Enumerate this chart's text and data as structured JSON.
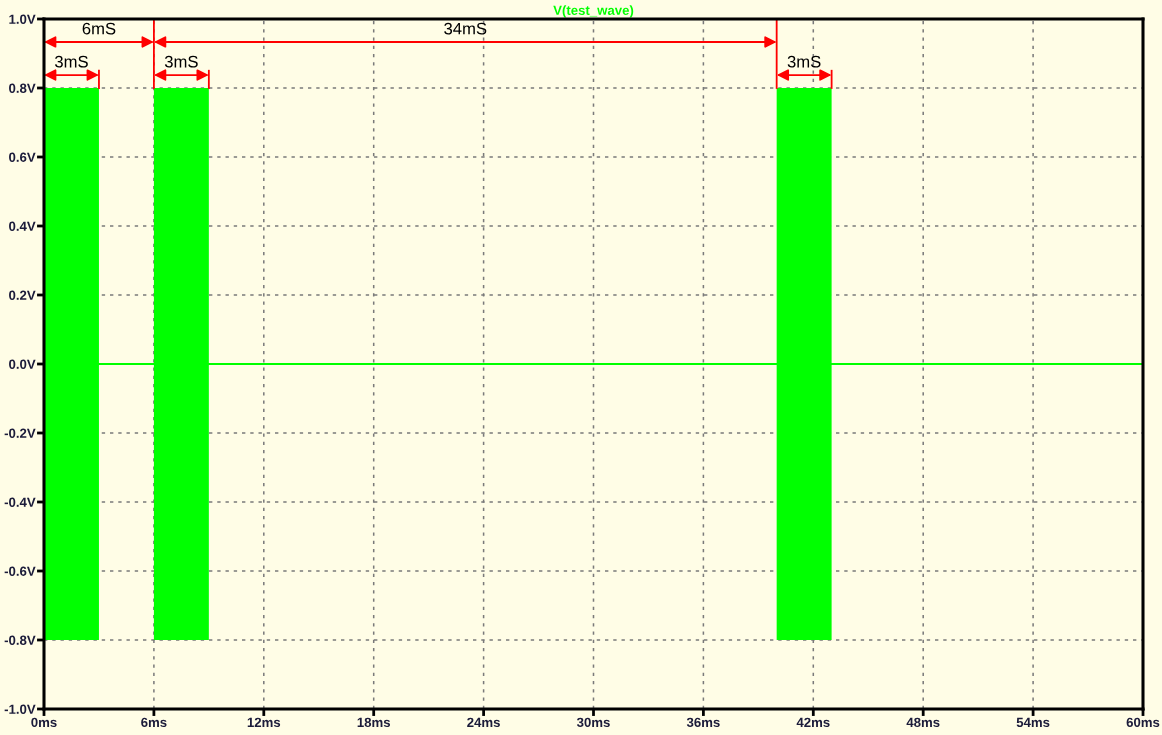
{
  "chart_data": {
    "type": "line",
    "title": "V(test_wave)",
    "x": [
      0,
      3,
      3,
      6,
      6,
      9,
      9,
      40,
      40,
      43,
      43,
      60
    ],
    "series": [
      {
        "color": "#00ff00",
        "values": [
          0,
          0,
          0,
          0,
          0,
          0,
          0,
          0,
          0,
          0,
          0,
          0
        ],
        "lower": [
          -0.8,
          -0.8,
          null,
          null,
          -0.8,
          -0.8,
          null,
          null,
          -0.8,
          -0.8,
          null,
          null
        ],
        "upper": [
          0.8,
          0.8,
          null,
          null,
          0.8,
          0.8,
          null,
          null,
          0.8,
          0.8,
          null,
          null
        ]
      }
    ],
    "xlim": [
      0,
      60
    ],
    "xticks": [
      {
        "value": 0,
        "label": "0ms"
      },
      {
        "value": 6,
        "label": "6ms"
      },
      {
        "value": 12,
        "label": "12ms"
      },
      {
        "value": 18,
        "label": "18ms"
      },
      {
        "value": 24,
        "label": "24ms"
      },
      {
        "value": 30,
        "label": "30ms"
      },
      {
        "value": 36,
        "label": "36ms"
      },
      {
        "value": 42,
        "label": "42ms"
      },
      {
        "value": 48,
        "label": "48ms"
      },
      {
        "value": 54,
        "label": "54ms"
      },
      {
        "value": 60,
        "label": "60ms"
      }
    ],
    "ylim": [
      -1.0,
      1.0
    ],
    "yticks": [
      {
        "value": -1.0,
        "label": "-1.0V"
      },
      {
        "value": -0.8,
        "label": "-0.8V"
      },
      {
        "value": -0.6,
        "label": "-0.6V"
      },
      {
        "value": -0.4,
        "label": "-0.4V"
      },
      {
        "value": -0.2,
        "label": "-0.2V"
      },
      {
        "value": 0.0,
        "label": "0.0V"
      },
      {
        "value": 0.2,
        "label": "0.2V"
      },
      {
        "value": 0.4,
        "label": "0.4V"
      },
      {
        "value": 0.6,
        "label": "0.6V"
      },
      {
        "value": 0.8,
        "label": "0.8V"
      },
      {
        "value": 1.0,
        "label": "1.0V"
      }
    ],
    "grid": true,
    "ref_lines": [
      {
        "axis": "x",
        "value": 6,
        "color": "#ff0000"
      },
      {
        "axis": "x",
        "value": 40,
        "color": "#ff0000"
      }
    ],
    "annotations": [
      "6mS",
      "34mS",
      "3mS",
      "3mS",
      "3mS"
    ]
  }
}
